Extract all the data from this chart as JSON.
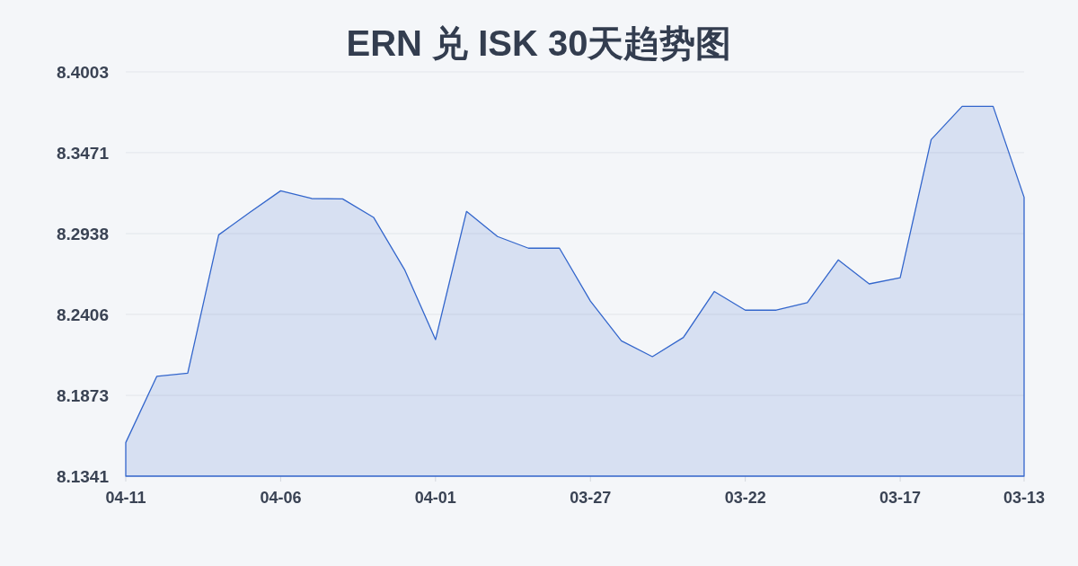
{
  "chart_data": {
    "type": "area",
    "title": "ERN 兑 ISK 30天趋势图",
    "categories": [
      "04-11",
      null,
      null,
      null,
      null,
      "04-06",
      null,
      null,
      null,
      null,
      "04-01",
      null,
      null,
      null,
      null,
      "03-27",
      null,
      null,
      null,
      null,
      "03-22",
      null,
      null,
      null,
      null,
      "03-17",
      null,
      null,
      null,
      "03-13"
    ],
    "series": [
      {
        "color": "#3366cc",
        "values": [
          8.1562,
          8.1998,
          8.2019,
          8.293,
          8.3077,
          8.322,
          8.3169,
          8.3167,
          8.3045,
          8.2701,
          8.224,
          8.3084,
          8.2919,
          8.2842,
          8.2842,
          8.2494,
          8.2232,
          8.2128,
          8.2254,
          8.2557,
          8.2434,
          8.2434,
          8.2483,
          8.2765,
          8.2607,
          8.2648,
          8.3557,
          8.3776,
          8.3776,
          8.3177
        ]
      }
    ],
    "ylim": [
      8.1341,
      8.4003
    ],
    "yticks": [
      8.1341,
      8.1873,
      8.2406,
      8.2938,
      8.3471,
      8.4003
    ],
    "grid": "y"
  }
}
